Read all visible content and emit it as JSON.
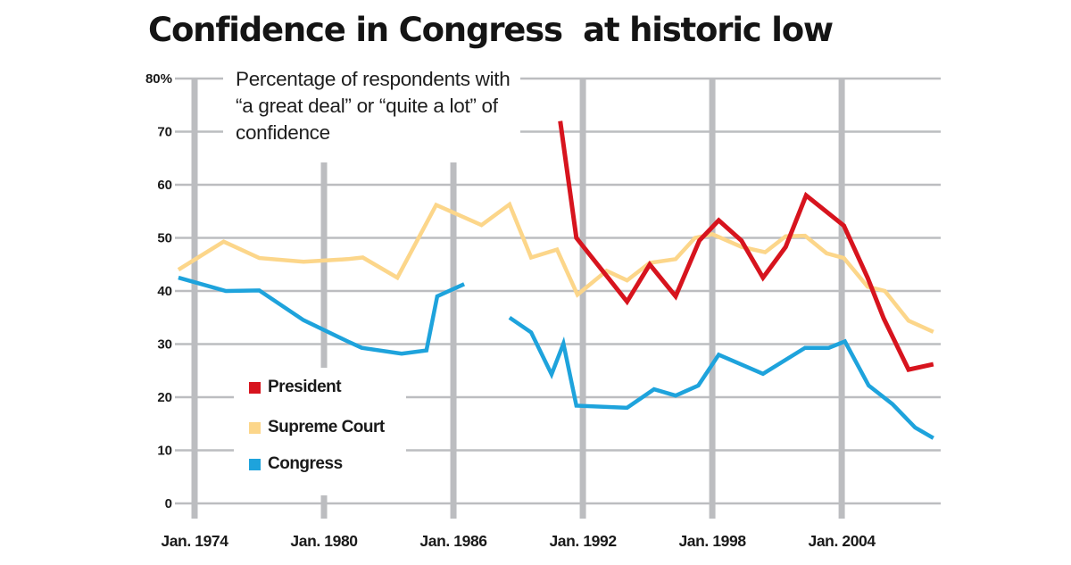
{
  "chart_data": {
    "type": "line",
    "title": "Confidence in Congress  at historic low",
    "subtitle": "Percentage of respondents with “a great deal” or “quite a lot” of confidence",
    "xlabel": "",
    "ylabel": "",
    "xlim": [
      1973.25,
      2008.5
    ],
    "ylim": [
      0,
      80
    ],
    "y_ticks": [
      {
        "value": 80,
        "label": "80%"
      },
      {
        "value": 70,
        "label": "70"
      },
      {
        "value": 60,
        "label": "60"
      },
      {
        "value": 50,
        "label": "50"
      },
      {
        "value": 40,
        "label": "40"
      },
      {
        "value": 30,
        "label": "30"
      },
      {
        "value": 20,
        "label": "20"
      },
      {
        "value": 10,
        "label": "10"
      },
      {
        "value": 0,
        "label": "0"
      }
    ],
    "x_ticks": [
      {
        "value": 1974,
        "label": "Jan. 1974"
      },
      {
        "value": 1980,
        "label": "Jan. 1980"
      },
      {
        "value": 1986,
        "label": "Jan. 1986"
      },
      {
        "value": 1992,
        "label": "Jan. 1992"
      },
      {
        "value": 1998,
        "label": "Jan. 1998"
      },
      {
        "value": 2004,
        "label": "Jan. 2004"
      }
    ],
    "grid": true,
    "legend": {
      "placement": "bottom-left"
    },
    "series": [
      {
        "name": "President",
        "color": "#d7141e",
        "segments": [
          [
            [
              1990.95,
              72
            ],
            [
              1991.7,
              50
            ],
            [
              1994.05,
              38
            ],
            [
              1995.1,
              45
            ],
            [
              1996.3,
              39
            ],
            [
              1997.4,
              49.5
            ],
            [
              1998.3,
              53.3
            ],
            [
              1999.35,
              49.5
            ],
            [
              2000.35,
              42.5
            ],
            [
              2001.4,
              48.3
            ],
            [
              2002.35,
              58
            ],
            [
              2004.1,
              52.3
            ],
            [
              2005.2,
              42.5
            ],
            [
              2005.95,
              34.8
            ],
            [
              2007.1,
              25.2
            ],
            [
              2008.25,
              26.2
            ]
          ]
        ]
      },
      {
        "name": "Supreme Court",
        "color": "#fcd68a",
        "segments": [
          [
            [
              1973.25,
              44
            ],
            [
              1975.35,
              49.3
            ],
            [
              1977,
              46.2
            ],
            [
              1979.05,
              45.5
            ],
            [
              1981.1,
              46
            ],
            [
              1981.8,
              46.3
            ],
            [
              1983.4,
              42.5
            ],
            [
              1985.2,
              56.2
            ],
            [
              1987.3,
              52.4
            ],
            [
              1988.6,
              56.3
            ],
            [
              1989.6,
              46.3
            ],
            [
              1990.8,
              47.8
            ],
            [
              1991.75,
              39.3
            ],
            [
              1993.1,
              43.8
            ],
            [
              1994.05,
              42
            ],
            [
              1995.1,
              45.3
            ],
            [
              1996.3,
              46
            ],
            [
              1997.2,
              50
            ],
            [
              1998.0,
              50.7
            ],
            [
              1999.35,
              48.3
            ],
            [
              2000.45,
              47.3
            ],
            [
              2001.4,
              50.3
            ],
            [
              2002.3,
              50.4
            ],
            [
              2003.3,
              47.1
            ],
            [
              2004.1,
              46.2
            ],
            [
              2005.2,
              40.8
            ],
            [
              2006.0,
              40
            ],
            [
              2007.1,
              34.4
            ],
            [
              2008.25,
              32.3
            ]
          ]
        ]
      },
      {
        "name": "Congress",
        "color": "#1ea3dc",
        "segments": [
          [
            [
              1973.25,
              42.5
            ],
            [
              1975.45,
              40
            ],
            [
              1977,
              40.1
            ],
            [
              1979.05,
              34.5
            ],
            [
              1981.1,
              30.5
            ],
            [
              1981.75,
              29.3
            ],
            [
              1983.6,
              28.2
            ],
            [
              1984.75,
              28.8
            ],
            [
              1985.25,
              39
            ],
            [
              1986.5,
              41.3
            ]
          ],
          [
            [
              1988.6,
              35
            ],
            [
              1989.6,
              32.2
            ],
            [
              1990.55,
              24.3
            ],
            [
              1991.1,
              30.1
            ],
            [
              1991.7,
              18.4
            ],
            [
              1994.05,
              18
            ],
            [
              1995.3,
              21.5
            ],
            [
              1996.3,
              20.3
            ],
            [
              1997.35,
              22.2
            ],
            [
              1998.3,
              28
            ],
            [
              2000.35,
              24.4
            ],
            [
              2002.3,
              29.3
            ],
            [
              2003.4,
              29.3
            ],
            [
              2004.15,
              30.5
            ],
            [
              2005.25,
              22.2
            ],
            [
              2006.35,
              18.7
            ],
            [
              2007.4,
              14.3
            ],
            [
              2008.25,
              12.3
            ]
          ]
        ]
      }
    ]
  }
}
